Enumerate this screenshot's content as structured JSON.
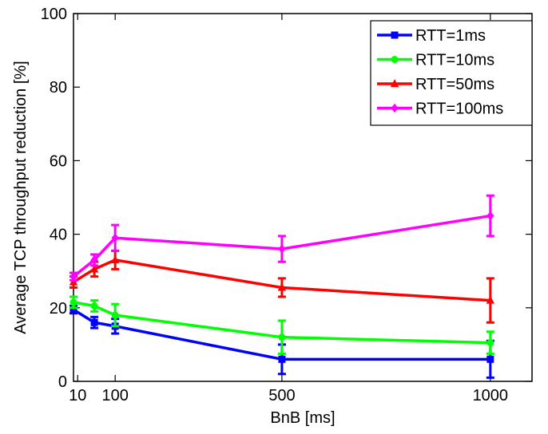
{
  "chart_data": {
    "type": "line",
    "xlabel": "BnB [ms]",
    "ylabel": "Average TCP throughput reduction [%]",
    "xlim": [
      0,
      1100
    ],
    "ylim": [
      0,
      100
    ],
    "xticks": [
      10,
      100,
      500,
      1000
    ],
    "xtick_labels": [
      "10",
      "100",
      "500",
      "1000"
    ],
    "yticks": [
      0,
      20,
      40,
      60,
      80,
      100
    ],
    "x": [
      0,
      50,
      100,
      500,
      1000
    ],
    "legend_position": "top-right",
    "grid": false,
    "series": [
      {
        "name": "RTT=1ms",
        "color": "#0000ff",
        "marker": "square",
        "values": [
          19.5,
          16,
          15,
          6,
          6
        ],
        "errors": [
          1,
          1.5,
          2,
          4,
          5
        ]
      },
      {
        "name": "RTT=10ms",
        "color": "#00ff00",
        "marker": "circle",
        "values": [
          21.5,
          20.5,
          18,
          12,
          10.5
        ],
        "errors": [
          1.5,
          1.5,
          3,
          4.5,
          3
        ]
      },
      {
        "name": "RTT=50ms",
        "color": "#ff0000",
        "marker": "triangle",
        "values": [
          27,
          30.5,
          33,
          25.5,
          22
        ],
        "errors": [
          1.5,
          2,
          2.5,
          2.5,
          6
        ]
      },
      {
        "name": "RTT=100ms",
        "color": "#ff00ff",
        "marker": "diamond",
        "values": [
          28.5,
          33,
          39,
          36,
          45
        ],
        "errors": [
          1,
          1.5,
          3.5,
          3.5,
          5.5
        ]
      }
    ]
  }
}
